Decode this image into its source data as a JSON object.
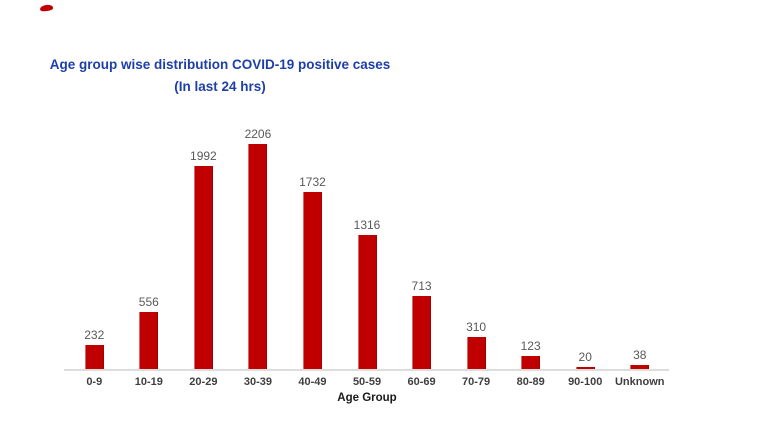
{
  "colors": {
    "bar": "#C00000",
    "title_text": "#1F3FA8",
    "value_label": "#595959",
    "category_label": "#3F3F3F",
    "x_axis_title": "#1A1A1A",
    "axis_line": "#DDDDDD",
    "background": "#FFFFFF"
  },
  "chart_data": {
    "type": "bar",
    "title": "Age group wise distribution COVID-19 positive cases",
    "subtitle": "(In last 24 hrs)",
    "categories": [
      "0-9",
      "10-19",
      "20-29",
      "30-39",
      "40-49",
      "50-59",
      "60-69",
      "70-79",
      "80-89",
      "90-100",
      "Unknown"
    ],
    "values": [
      232,
      556,
      1992,
      2206,
      1732,
      1316,
      713,
      310,
      123,
      20,
      38
    ],
    "xlabel": "Age Group",
    "ylabel": "",
    "ylim": [
      0,
      2400
    ],
    "grid": false,
    "legend": false,
    "data_labels": true,
    "bar_color": "#C00000"
  }
}
